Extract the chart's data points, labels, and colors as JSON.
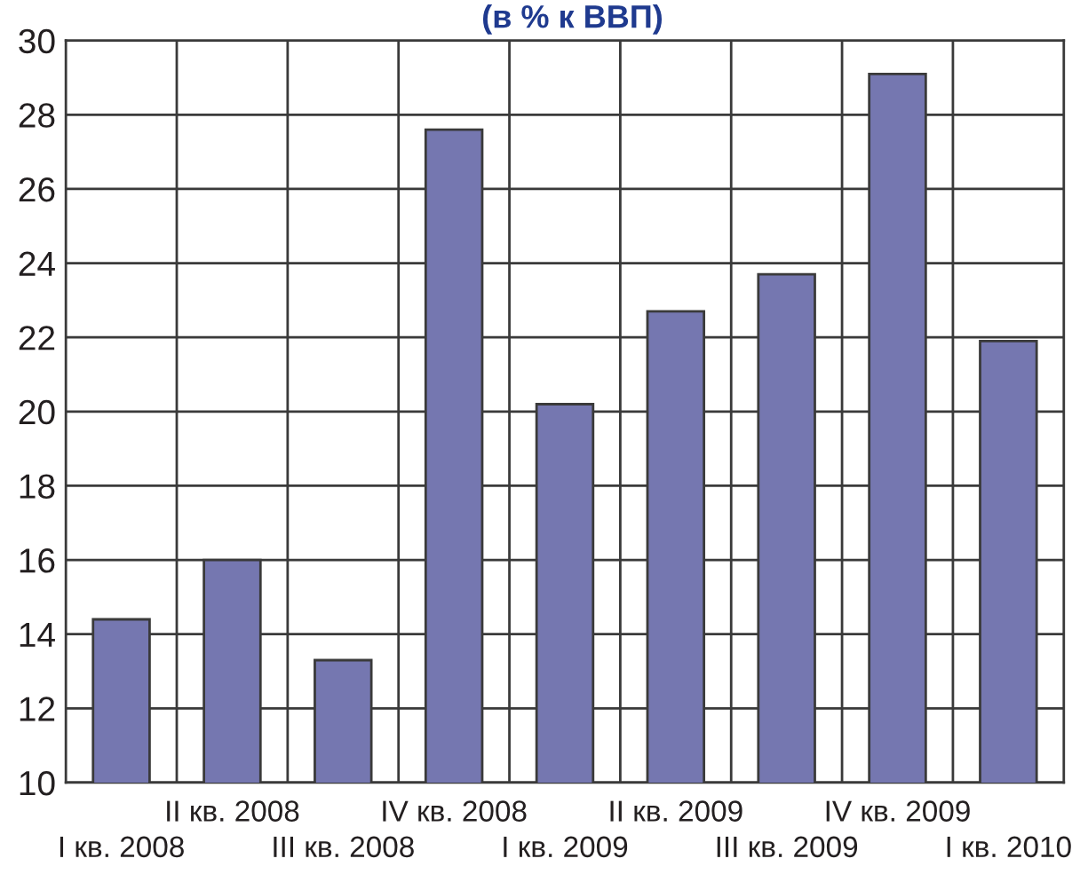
{
  "chart_data": {
    "type": "bar",
    "title": "(в % к ВВП)",
    "categories": [
      "I кв. 2008",
      "II кв. 2008",
      "III кв. 2008",
      "IV кв. 2008",
      "I кв. 2009",
      "II кв. 2009",
      "III кв. 2009",
      "IV кв. 2009",
      "I кв. 2010"
    ],
    "values": [
      14.4,
      16.0,
      13.3,
      27.6,
      20.2,
      22.7,
      23.7,
      29.1,
      21.9
    ],
    "color": "#7577b0",
    "ylim": [
      10,
      30
    ],
    "yticks": [
      10,
      12,
      14,
      16,
      18,
      20,
      22,
      24,
      26,
      28,
      30
    ],
    "grid": true
  }
}
